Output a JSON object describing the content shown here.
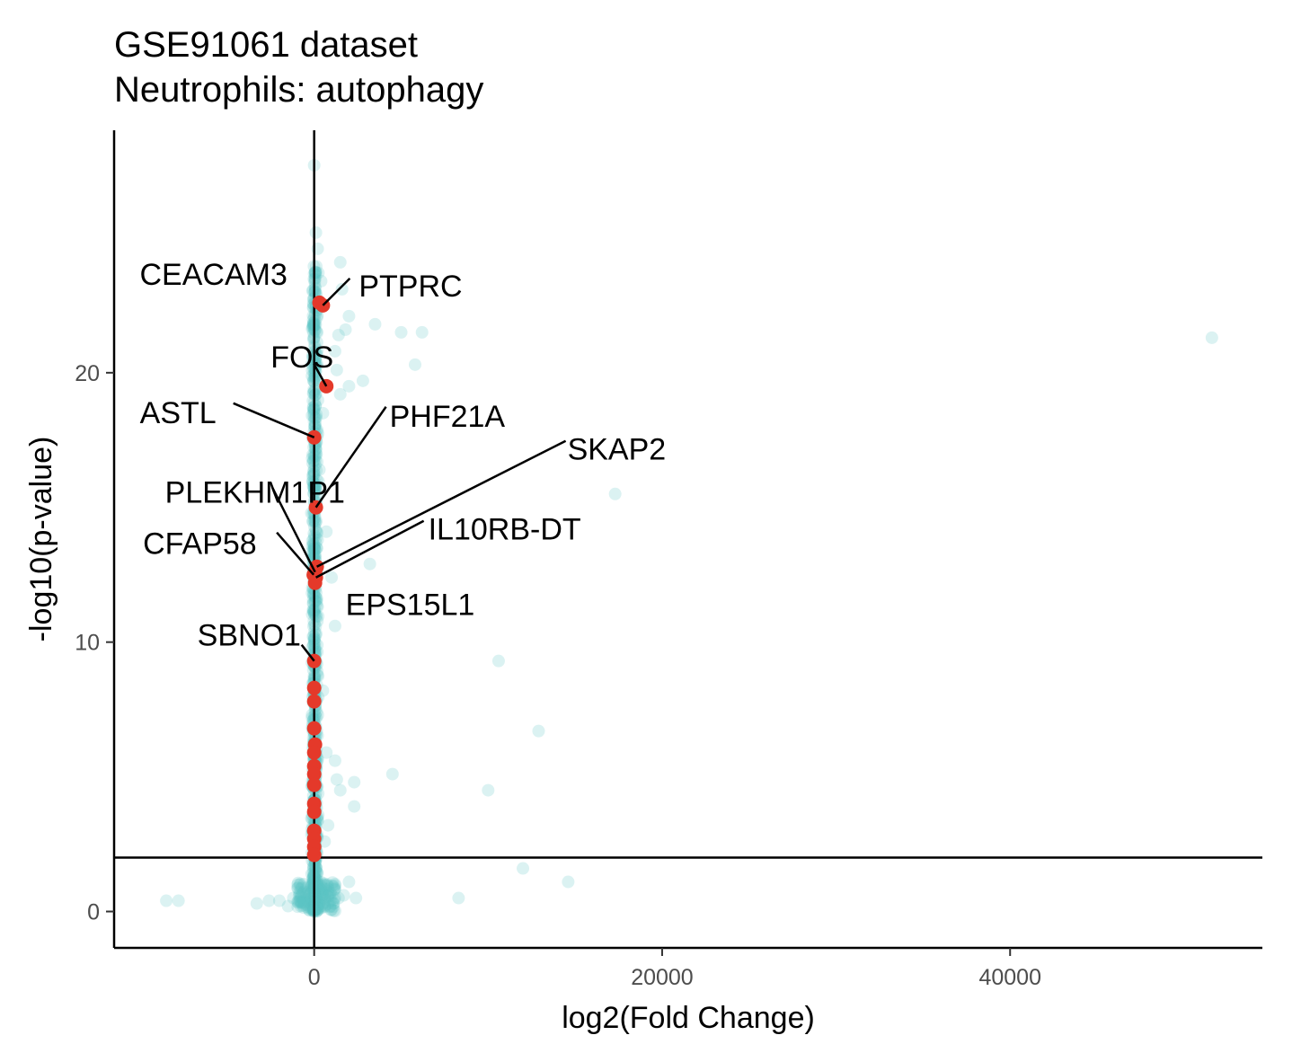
{
  "chart_data": {
    "type": "scatter",
    "title": "GSE91061 dataset",
    "subtitle": "Neutrophils: autophagy",
    "xlabel": "log2(Fold Change)",
    "ylabel": "-log10(p-value)",
    "xlim": [
      -11500,
      54500
    ],
    "ylim": [
      -1.35,
      29
    ],
    "x_ticks": [
      0,
      20000,
      40000
    ],
    "x_tick_labels": [
      "0",
      "20000",
      "40000"
    ],
    "y_ticks": [
      0,
      10,
      20
    ],
    "y_tick_labels": [
      "0",
      "10",
      "20"
    ],
    "threshold_y": 2,
    "vline_x": 0,
    "grid": false,
    "colors": {
      "background_genes": "#5BC2C4",
      "autophagy_genes": "#E4392A",
      "axis": "#000000"
    },
    "background_points": [
      [
        0,
        27.7
      ],
      [
        100,
        25.2
      ],
      [
        200,
        24.6
      ],
      [
        1500,
        24.1
      ],
      [
        400,
        23.4
      ],
      [
        1600,
        23.1
      ],
      [
        2000,
        22.1
      ],
      [
        1800,
        21.6
      ],
      [
        3500,
        21.8
      ],
      [
        5000,
        21.5
      ],
      [
        6200,
        21.5
      ],
      [
        1400,
        21.4
      ],
      [
        51600,
        21.3
      ],
      [
        1200,
        20.8
      ],
      [
        5800,
        20.3
      ],
      [
        1300,
        20.1
      ],
      [
        2000,
        19.5
      ],
      [
        2800,
        19.7
      ],
      [
        1500,
        19.2
      ],
      [
        500,
        18.5
      ],
      [
        300,
        16.4
      ],
      [
        17300,
        15.5
      ],
      [
        700,
        14.1
      ],
      [
        3200,
        12.9
      ],
      [
        1000,
        12.4
      ],
      [
        1200,
        10.6
      ],
      [
        10600,
        9.3
      ],
      [
        500,
        8.2
      ],
      [
        12900,
        6.7
      ],
      [
        700,
        5.9
      ],
      [
        1200,
        5.6
      ],
      [
        4500,
        5.1
      ],
      [
        1300,
        4.9
      ],
      [
        1500,
        4.5
      ],
      [
        10000,
        4.5
      ],
      [
        2300,
        4.8
      ],
      [
        2300,
        3.9
      ],
      [
        800,
        3.2
      ],
      [
        600,
        2.6
      ],
      [
        12000,
        1.6
      ],
      [
        14600,
        1.1
      ],
      [
        2000,
        1.1
      ],
      [
        8300,
        0.5
      ],
      [
        -8500,
        0.4
      ],
      [
        -7800,
        0.4
      ],
      [
        -3300,
        0.3
      ],
      [
        -2600,
        0.4
      ],
      [
        -2000,
        0.4
      ],
      [
        -1500,
        0.2
      ],
      [
        -1200,
        0.5
      ],
      [
        -900,
        0.4
      ],
      [
        -600,
        0.3
      ],
      [
        -300,
        0.6
      ],
      [
        400,
        0.8
      ],
      [
        900,
        0.6
      ],
      [
        1400,
        0.5
      ],
      [
        2400,
        0.5
      ],
      [
        600,
        0.2
      ],
      [
        1100,
        0.3
      ],
      [
        1700,
        0.6
      ],
      [
        200,
        0.1
      ],
      [
        -200,
        0.1
      ]
    ],
    "background_range": {
      "x": [
        -500,
        700
      ],
      "y": [
        0,
        24
      ]
    },
    "highlighted_points": [
      {
        "label": "CEACAM3",
        "x": 300,
        "y": 22.6
      },
      {
        "label": "PTPRC",
        "x": 500,
        "y": 22.5
      },
      {
        "label": "FOS",
        "x": 700,
        "y": 19.5
      },
      {
        "label": "ASTL",
        "x": 0,
        "y": 17.6
      },
      {
        "label": "PHF21A",
        "x": 100,
        "y": 15.0
      },
      {
        "label": "SKAP2",
        "x": 150,
        "y": 12.8
      },
      {
        "label": "PLEKHM1P1",
        "x": 50,
        "y": 12.6
      },
      {
        "label": "IL10RB-DT",
        "x": 100,
        "y": 12.4
      },
      {
        "label": "CFAP58",
        "x": -30,
        "y": 12.5
      },
      {
        "label": "EPS15L1",
        "x": 50,
        "y": 12.2
      },
      {
        "label": "SBNO1",
        "x": 0,
        "y": 9.3
      },
      {
        "label": "",
        "x": 0,
        "y": 8.3
      },
      {
        "label": "",
        "x": 0,
        "y": 7.8
      },
      {
        "label": "",
        "x": 0,
        "y": 6.8
      },
      {
        "label": "",
        "x": 50,
        "y": 6.2
      },
      {
        "label": "",
        "x": 0,
        "y": 5.9
      },
      {
        "label": "",
        "x": 0,
        "y": 5.4
      },
      {
        "label": "",
        "x": 0,
        "y": 5.1
      },
      {
        "label": "",
        "x": 0,
        "y": 4.7
      },
      {
        "label": "",
        "x": 0,
        "y": 4.0
      },
      {
        "label": "",
        "x": 0,
        "y": 3.7
      },
      {
        "label": "",
        "x": 0,
        "y": 3.0
      },
      {
        "label": "",
        "x": 0,
        "y": 2.7
      },
      {
        "label": "",
        "x": 0,
        "y": 2.4
      },
      {
        "label": "",
        "x": 0,
        "y": 2.1
      }
    ]
  }
}
